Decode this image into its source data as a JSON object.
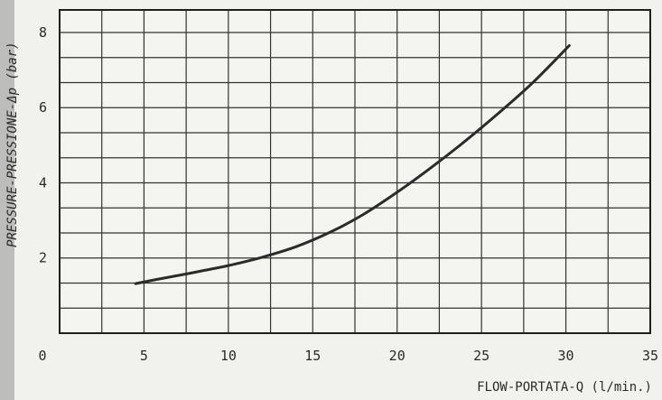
{
  "chart_data": {
    "type": "line",
    "title": "",
    "xlabel": "FLOW-PORTATA-Q (l/min.)",
    "ylabel": "PRESSURE-PRESSIONE-Δp (bar)",
    "xlim": [
      0,
      35
    ],
    "ylim": [
      0,
      8.6
    ],
    "x_ticks": [
      "0",
      "5",
      "10",
      "15",
      "20",
      "25",
      "30",
      "35"
    ],
    "y_ticks": [
      "2",
      "4",
      "6",
      "8"
    ],
    "grid": true,
    "colors": {
      "line": "#2b2b2b",
      "grid": "#333333",
      "background": "#f4f4f0"
    },
    "series": [
      {
        "x": [
          4.5,
          6,
          8,
          10,
          12,
          14,
          16,
          18,
          20,
          22,
          24,
          26,
          28,
          30.2
        ],
        "y": [
          1.32,
          1.45,
          1.62,
          1.8,
          2.02,
          2.3,
          2.68,
          3.16,
          3.75,
          4.4,
          5.1,
          5.85,
          6.65,
          7.65
        ]
      }
    ]
  }
}
